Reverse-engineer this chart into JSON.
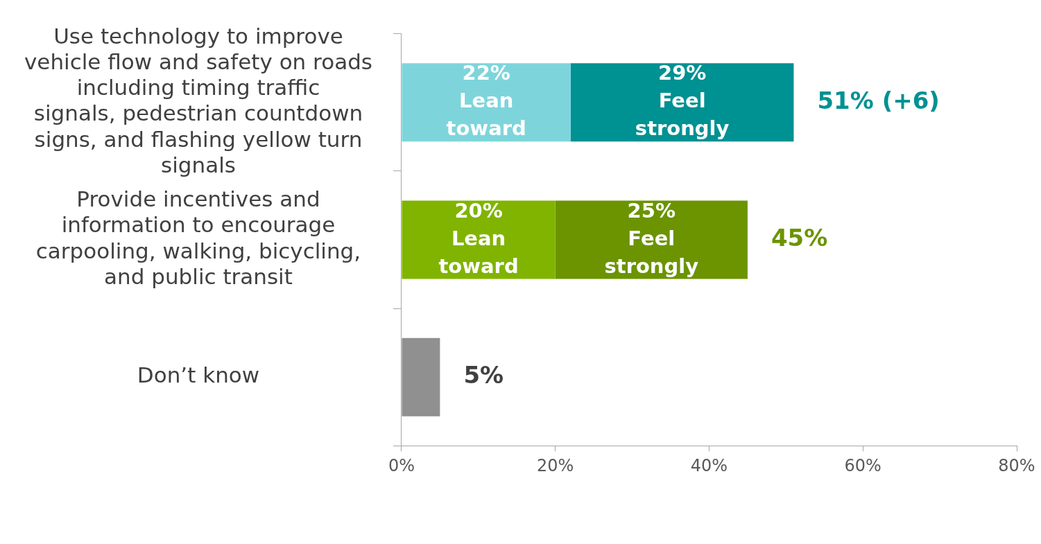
{
  "chart_data": {
    "type": "bar",
    "orientation": "horizontal",
    "stacked": true,
    "legend": false,
    "grid": false,
    "categories": [
      "Use technology to improve vehicle flow and safety on roads including timing traffic signals, pedestrian countdown signs, and flashing yellow turn signals",
      "Provide incentives and information to encourage carpooling, walking, bicycling, and public transit",
      "Don’t know"
    ],
    "series": [
      {
        "name": "Lean toward",
        "values": [
          22,
          20,
          5
        ],
        "colors": [
          "#7dd5db",
          "#80b400",
          "#909090"
        ],
        "value_labels": [
          "22%",
          "20%",
          null
        ]
      },
      {
        "name": "Feel strongly",
        "values": [
          29,
          25,
          null
        ],
        "colors": [
          "#009193",
          "#6b9400",
          "#404040"
        ],
        "value_labels": [
          "29%",
          "25%",
          null
        ]
      }
    ],
    "totals": [
      "51% (+6)",
      "45%",
      "5%"
    ],
    "xlim": [
      0,
      80
    ],
    "xticks": [
      {
        "value": 0,
        "label": "0%"
      },
      {
        "value": 20,
        "label": "20%"
      },
      {
        "value": 40,
        "label": "40%"
      },
      {
        "value": 60,
        "label": "60%"
      },
      {
        "value": 80,
        "label": "80%"
      }
    ]
  }
}
